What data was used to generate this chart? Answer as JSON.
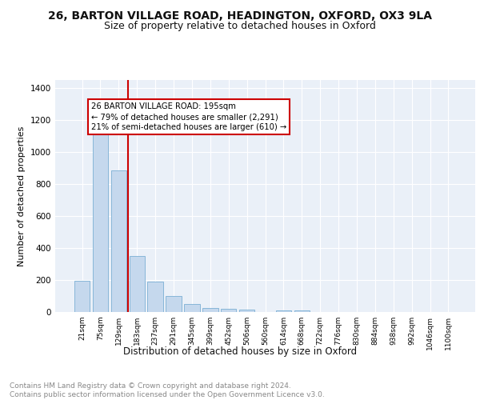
{
  "title1": "26, BARTON VILLAGE ROAD, HEADINGTON, OXFORD, OX3 9LA",
  "title2": "Size of property relative to detached houses in Oxford",
  "xlabel": "Distribution of detached houses by size in Oxford",
  "ylabel": "Number of detached properties",
  "categories": [
    "21sqm",
    "75sqm",
    "129sqm",
    "183sqm",
    "237sqm",
    "291sqm",
    "345sqm",
    "399sqm",
    "452sqm",
    "506sqm",
    "560sqm",
    "614sqm",
    "668sqm",
    "722sqm",
    "776sqm",
    "830sqm",
    "884sqm",
    "938sqm",
    "992sqm",
    "1046sqm",
    "1100sqm"
  ],
  "values": [
    197,
    1117,
    883,
    352,
    190,
    101,
    51,
    26,
    22,
    14,
    0,
    12,
    12,
    0,
    0,
    0,
    0,
    0,
    0,
    0,
    0
  ],
  "bar_color": "#c5d8ed",
  "bar_edge_color": "#7aafd4",
  "vline_x": 3,
  "vline_color": "#cc0000",
  "annotation_text": "26 BARTON VILLAGE ROAD: 195sqm\n← 79% of detached houses are smaller (2,291)\n21% of semi-detached houses are larger (610) →",
  "annotation_box_color": "#ffffff",
  "annotation_box_edge": "#cc0000",
  "ylim": [
    0,
    1450
  ],
  "yticks": [
    0,
    200,
    400,
    600,
    800,
    1000,
    1200,
    1400
  ],
  "bg_color": "#eaf0f8",
  "footer_text": "Contains HM Land Registry data © Crown copyright and database right 2024.\nContains public sector information licensed under the Open Government Licence v3.0.",
  "title1_fontsize": 10,
  "title2_fontsize": 9,
  "xlabel_fontsize": 8.5,
  "ylabel_fontsize": 8,
  "footer_fontsize": 6.5
}
